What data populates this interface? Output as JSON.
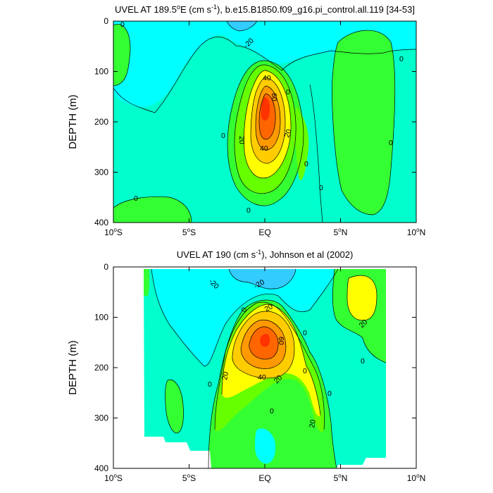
{
  "chart_data": [
    {
      "type": "contour",
      "title_main": "UVEL AT 189.5",
      "title_deg": "o",
      "title_e": "E (cm s",
      "title_exp": "-1",
      "title_rest": "), b.e15.B1850.f09_g16.pi_control.all.119 [34-53]",
      "ylabel": "DEPTH (m)",
      "xticks": [
        "10",
        "5",
        "EQ",
        "5",
        "10"
      ],
      "xtick_hemi": [
        "S",
        "S",
        "",
        "N",
        "N"
      ],
      "deg_symbol": "o",
      "yticks": [
        "0",
        "100",
        "200",
        "300",
        "400"
      ],
      "xlim": [
        -10,
        10
      ],
      "ylim": [
        400,
        0
      ],
      "contour_interval": 10,
      "contour_labels": [
        "0",
        "-20",
        "40",
        "60",
        "20",
        "20",
        "40",
        "0",
        "0",
        "0",
        "0",
        "0",
        "0",
        "0",
        "0"
      ],
      "colors": {
        "neg20": "#33ccff",
        "neg10": "#00ffff",
        "zero": "#00ffcc",
        "pos10": "#33ff33",
        "pos20": "#66ff00",
        "pos30": "#ffff00",
        "pos40": "#ffcc00",
        "pos50": "#ff9900",
        "pos60": "#ff6600",
        "pos70": "#ff3300"
      }
    },
    {
      "type": "contour",
      "title_main": "UVEL AT 190 (cm s",
      "title_exp": "-1",
      "title_rest": "), Johnson et al (2002)",
      "ylabel": "DEPTH (m)",
      "xticks": [
        "10",
        "5",
        "EQ",
        "5",
        "10"
      ],
      "xtick_hemi": [
        "S",
        "S",
        "",
        "N",
        "N"
      ],
      "deg_symbol": "o",
      "yticks": [
        "0",
        "100",
        "200",
        "300",
        "400"
      ],
      "xlim": [
        -10,
        10
      ],
      "ylim": [
        400,
        0
      ],
      "contour_interval": 10,
      "contour_labels": [
        "-20",
        "-20",
        "0",
        "20",
        "60",
        "40",
        "20",
        "20",
        "20",
        "20",
        "0",
        "0",
        "0",
        "0",
        "0",
        "0"
      ]
    }
  ]
}
